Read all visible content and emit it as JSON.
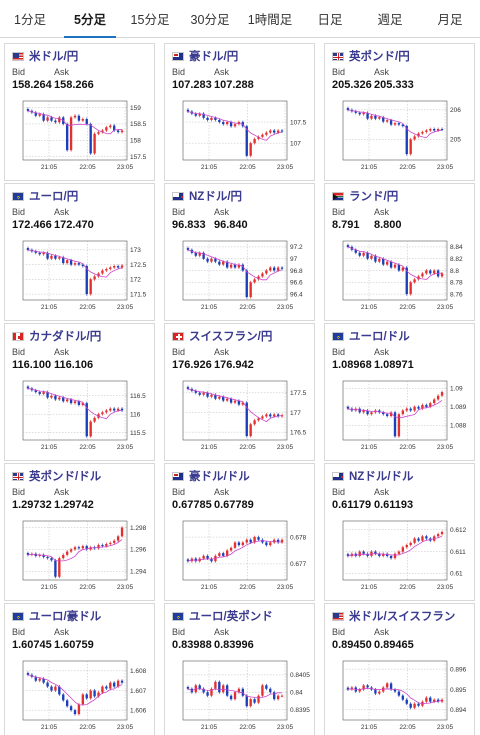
{
  "tabs": [
    {
      "label": "1分足",
      "active": false
    },
    {
      "label": "5分足",
      "active": true
    },
    {
      "label": "15分足",
      "active": false
    },
    {
      "label": "30分足",
      "active": false
    },
    {
      "label": "1時間足",
      "active": false
    },
    {
      "label": "日足",
      "active": false
    },
    {
      "label": "週足",
      "active": false
    },
    {
      "label": "月足",
      "active": false
    }
  ],
  "labels": {
    "bid": "Bid",
    "ask": "Ask"
  },
  "colors": {
    "up": "#e23030",
    "down": "#1a3fb8",
    "ma": "#cc44cc",
    "accent": "#1e73be",
    "pair_text": "#3a3a8e"
  },
  "cards": [
    {
      "name": "米ドル/円",
      "flag": "us",
      "bid": "158.264",
      "ask": "158.266",
      "y_ticks": [
        "159",
        "158.5",
        "158",
        "157.5"
      ],
      "ylim": [
        157.4,
        159.2
      ],
      "x_ticks": [
        "21:05",
        "22:05",
        "23:05"
      ],
      "candles": [
        158.9,
        158.85,
        158.75,
        158.8,
        158.6,
        158.7,
        158.6,
        158.55,
        158.7,
        158.5,
        157.7,
        158.7,
        158.75,
        158.6,
        158.65,
        158.5,
        157.6,
        158.2,
        158.25,
        158.3,
        158.4,
        158.45,
        158.3,
        158.25,
        158.3
      ],
      "shape": "drop-early"
    },
    {
      "name": "豪ドル/円",
      "flag": "au",
      "bid": "107.283",
      "ask": "107.288",
      "y_ticks": [
        "107.5",
        "107"
      ],
      "ylim": [
        106.6,
        108.0
      ],
      "x_ticks": [
        "21:05",
        "22:05",
        "23:05"
      ],
      "candles": [
        107.75,
        107.7,
        107.65,
        107.7,
        107.6,
        107.55,
        107.6,
        107.55,
        107.5,
        107.45,
        107.5,
        107.4,
        107.45,
        107.5,
        107.4,
        106.7,
        107.0,
        107.1,
        107.15,
        107.2,
        107.25,
        107.3,
        107.25,
        107.3,
        107.28
      ],
      "shape": "drop-mid"
    },
    {
      "name": "英ポンド/円",
      "flag": "gb",
      "bid": "205.326",
      "ask": "205.333",
      "y_ticks": [
        "206",
        "205"
      ],
      "ylim": [
        204.3,
        206.3
      ],
      "x_ticks": [
        "21:05",
        "22:05",
        "23:05"
      ],
      "candles": [
        206.0,
        205.95,
        205.9,
        205.85,
        205.9,
        205.7,
        205.8,
        205.7,
        205.75,
        205.6,
        205.65,
        205.5,
        205.55,
        205.5,
        205.45,
        204.5,
        205.0,
        205.1,
        205.2,
        205.25,
        205.3,
        205.35,
        205.3,
        205.35,
        205.33
      ],
      "shape": "drop-mid"
    },
    {
      "name": "ユーロ/円",
      "flag": "eu",
      "bid": "172.466",
      "ask": "172.470",
      "y_ticks": [
        "173",
        "172.5",
        "172",
        "171.5"
      ],
      "ylim": [
        171.3,
        173.3
      ],
      "x_ticks": [
        "21:05",
        "22:05",
        "23:05"
      ],
      "candles": [
        173.0,
        172.95,
        172.9,
        172.85,
        172.9,
        172.7,
        172.8,
        172.7,
        172.75,
        172.55,
        172.65,
        172.5,
        172.55,
        172.5,
        172.45,
        171.5,
        172.0,
        172.1,
        172.2,
        172.3,
        172.35,
        172.4,
        172.45,
        172.4,
        172.47
      ],
      "shape": "drop-mid"
    },
    {
      "name": "NZドル/円",
      "flag": "nz",
      "bid": "96.833",
      "ask": "96.840",
      "y_ticks": [
        "97.2",
        "97",
        "96.8",
        "96.6",
        "96.4"
      ],
      "ylim": [
        96.3,
        97.3
      ],
      "x_ticks": [
        "21:05",
        "22:05",
        "23:05"
      ],
      "candles": [
        97.15,
        97.1,
        97.05,
        97.1,
        97.0,
        96.95,
        97.0,
        96.95,
        96.9,
        96.95,
        96.85,
        96.9,
        96.85,
        96.9,
        96.8,
        96.35,
        96.6,
        96.65,
        96.7,
        96.75,
        96.8,
        96.85,
        96.8,
        96.85,
        96.83
      ],
      "shape": "drop-mid"
    },
    {
      "name": "ランド/円",
      "flag": "za",
      "bid": "8.791",
      "ask": "8.800",
      "y_ticks": [
        "8.84",
        "8.82",
        "8.8",
        "8.78",
        "8.76"
      ],
      "ylim": [
        8.75,
        8.85
      ],
      "x_ticks": [
        "21:05",
        "22:05",
        "23:05"
      ],
      "candles": [
        8.84,
        8.835,
        8.83,
        8.825,
        8.83,
        8.82,
        8.825,
        8.815,
        8.82,
        8.81,
        8.815,
        8.805,
        8.81,
        8.8,
        8.805,
        8.76,
        8.78,
        8.785,
        8.79,
        8.795,
        8.8,
        8.795,
        8.8,
        8.79,
        8.795
      ],
      "shape": "drop-mid"
    },
    {
      "name": "カナダドル/円",
      "flag": "ca",
      "bid": "116.100",
      "ask": "116.106",
      "y_ticks": [
        "116.5",
        "116",
        "115.5"
      ],
      "ylim": [
        115.3,
        116.9
      ],
      "x_ticks": [
        "21:05",
        "22:05",
        "23:05"
      ],
      "candles": [
        116.7,
        116.65,
        116.6,
        116.55,
        116.6,
        116.45,
        116.5,
        116.4,
        116.45,
        116.35,
        116.4,
        116.3,
        116.35,
        116.25,
        116.3,
        115.4,
        115.8,
        115.9,
        116.0,
        116.05,
        116.1,
        116.15,
        116.1,
        116.15,
        116.1
      ],
      "shape": "drop-mid"
    },
    {
      "name": "スイスフラン/円",
      "flag": "ch",
      "bid": "176.926",
      "ask": "176.942",
      "y_ticks": [
        "177.5",
        "177",
        "176.5"
      ],
      "ylim": [
        176.3,
        177.8
      ],
      "x_ticks": [
        "21:05",
        "22:05",
        "23:05"
      ],
      "candles": [
        177.6,
        177.55,
        177.5,
        177.45,
        177.5,
        177.4,
        177.45,
        177.35,
        177.4,
        177.3,
        177.35,
        177.25,
        177.3,
        177.2,
        177.25,
        176.4,
        176.7,
        176.8,
        176.85,
        176.9,
        176.95,
        176.9,
        176.95,
        176.9,
        176.93
      ],
      "shape": "drop-mid"
    },
    {
      "name": "ユーロ/ドル",
      "flag": "eu",
      "bid": "1.08968",
      "ask": "1.08971",
      "y_ticks": [
        "1.09",
        "1.089",
        "1.088"
      ],
      "ylim": [
        1.0872,
        1.0904
      ],
      "x_ticks": [
        "21:05",
        "22:05",
        "23:05"
      ],
      "candles": [
        1.0889,
        1.0888,
        1.0889,
        1.0887,
        1.0888,
        1.0886,
        1.0887,
        1.0888,
        1.0887,
        1.0886,
        1.0885,
        1.0887,
        1.0874,
        1.0886,
        1.0888,
        1.0889,
        1.0888,
        1.089,
        1.0889,
        1.0891,
        1.089,
        1.0892,
        1.0894,
        1.0896,
        1.0898
      ],
      "shape": "rise"
    },
    {
      "name": "英ポンド/ドル",
      "flag": "gb",
      "bid": "1.29732",
      "ask": "1.29742",
      "y_ticks": [
        "1.298",
        "1.296",
        "1.294"
      ],
      "ylim": [
        1.2932,
        1.2986
      ],
      "x_ticks": [
        "21:05",
        "22:05",
        "23:05"
      ],
      "candles": [
        1.2955,
        1.2956,
        1.2954,
        1.2955,
        1.2953,
        1.2952,
        1.295,
        1.2935,
        1.2952,
        1.2955,
        1.2958,
        1.296,
        1.2962,
        1.2961,
        1.2963,
        1.296,
        1.2962,
        1.2961,
        1.2964,
        1.2963,
        1.2965,
        1.2966,
        1.2968,
        1.2972,
        1.298
      ],
      "shape": "rise"
    },
    {
      "name": "豪ドル/ドル",
      "flag": "au",
      "bid": "0.67785",
      "ask": "0.67789",
      "y_ticks": [
        "0.678",
        "0.677"
      ],
      "ylim": [
        0.6764,
        0.6786
      ],
      "x_ticks": [
        "21:05",
        "22:05",
        "23:05"
      ],
      "candles": [
        0.6771,
        0.6772,
        0.6771,
        0.6772,
        0.6773,
        0.6772,
        0.6771,
        0.6773,
        0.6774,
        0.6773,
        0.6775,
        0.6776,
        0.6778,
        0.6777,
        0.6778,
        0.6779,
        0.6778,
        0.678,
        0.6779,
        0.6778,
        0.6777,
        0.6778,
        0.6779,
        0.6778,
        0.6779
      ],
      "shape": "rise"
    },
    {
      "name": "NZドル/ドル",
      "flag": "nz",
      "bid": "0.61179",
      "ask": "0.61193",
      "y_ticks": [
        "0.612",
        "0.611",
        "0.61"
      ],
      "ylim": [
        0.6097,
        0.6124
      ],
      "x_ticks": [
        "21:05",
        "22:05",
        "23:05"
      ],
      "candles": [
        0.6108,
        0.6109,
        0.6108,
        0.611,
        0.6109,
        0.6108,
        0.611,
        0.6109,
        0.6108,
        0.6109,
        0.6108,
        0.6107,
        0.6109,
        0.611,
        0.6112,
        0.6113,
        0.6114,
        0.6116,
        0.6115,
        0.6117,
        0.6116,
        0.6115,
        0.6117,
        0.6118,
        0.6119
      ],
      "shape": "rise"
    },
    {
      "name": "ユーロ/豪ドル",
      "flag": "eu",
      "bid": "1.60745",
      "ask": "1.60759",
      "y_ticks": [
        "1.608",
        "1.607",
        "1.606"
      ],
      "ylim": [
        1.6055,
        1.6085
      ],
      "x_ticks": [
        "21:05",
        "22:05",
        "23:05"
      ],
      "candles": [
        1.6078,
        1.6077,
        1.6075,
        1.6076,
        1.6074,
        1.6072,
        1.607,
        1.6072,
        1.6068,
        1.6065,
        1.6062,
        1.606,
        1.6058,
        1.6063,
        1.6068,
        1.6066,
        1.607,
        1.6067,
        1.6069,
        1.6072,
        1.6071,
        1.6074,
        1.6072,
        1.6075,
        1.6074
      ],
      "shape": "dip"
    },
    {
      "name": "ユーロ/英ポンド",
      "flag": "eu",
      "bid": "0.83988",
      "ask": "0.83996",
      "y_ticks": [
        "0.8405",
        "0.84",
        "0.8395"
      ],
      "ylim": [
        0.8392,
        0.8409
      ],
      "x_ticks": [
        "21:05",
        "22:05",
        "23:05"
      ],
      "candles": [
        0.8401,
        0.84,
        0.8402,
        0.8401,
        0.84,
        0.8399,
        0.8401,
        0.8403,
        0.84,
        0.8402,
        0.8399,
        0.8398,
        0.84,
        0.8401,
        0.8399,
        0.8396,
        0.8398,
        0.8397,
        0.8399,
        0.8402,
        0.8401,
        0.84,
        0.8398,
        0.8399,
        0.8399
      ],
      "shape": "flat"
    },
    {
      "name": "米ドル/スイスフラン",
      "flag": "us",
      "bid": "0.89450",
      "ask": "0.89465",
      "y_ticks": [
        "0.896",
        "0.895",
        "0.894"
      ],
      "ylim": [
        0.8935,
        0.8964
      ],
      "x_ticks": [
        "21:05",
        "22:05",
        "23:05"
      ],
      "candles": [
        0.895,
        0.8951,
        0.8949,
        0.895,
        0.8952,
        0.8951,
        0.895,
        0.8948,
        0.8949,
        0.8951,
        0.8953,
        0.895,
        0.8949,
        0.8947,
        0.8945,
        0.8943,
        0.8941,
        0.8943,
        0.8942,
        0.8944,
        0.8946,
        0.8944,
        0.8945,
        0.8944,
        0.8945
      ],
      "shape": "fall"
    }
  ]
}
